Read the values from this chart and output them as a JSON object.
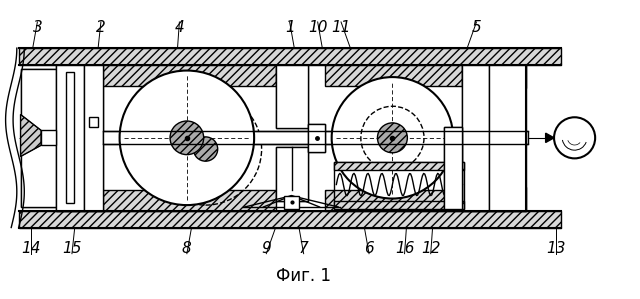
{
  "fig_width": 6.4,
  "fig_height": 2.99,
  "dpi": 100,
  "bg_color": "#ffffff",
  "line_color": "#000000",
  "title": "Фиг. 1",
  "title_fontsize": 12
}
